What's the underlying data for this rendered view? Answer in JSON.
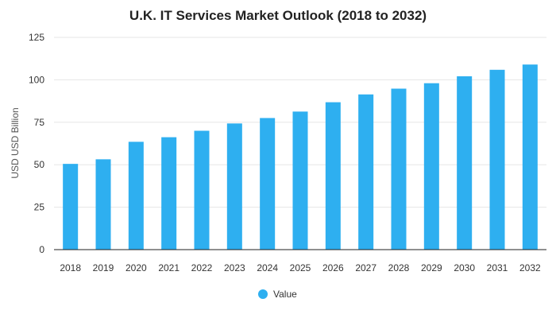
{
  "chart_data": {
    "type": "bar",
    "title": "U.K. IT Services Market Outlook (2018 to 2032)",
    "xlabel": "",
    "ylabel": "USD USD Billion",
    "categories": [
      "2018",
      "2019",
      "2020",
      "2021",
      "2022",
      "2023",
      "2024",
      "2025",
      "2026",
      "2027",
      "2028",
      "2029",
      "2030",
      "2031",
      "2032"
    ],
    "series": [
      {
        "name": "Value",
        "values": [
          50.5,
          53.2,
          63.5,
          66.2,
          70.0,
          74.3,
          77.5,
          81.3,
          86.8,
          91.4,
          94.8,
          98.0,
          102.1,
          105.9,
          109.0
        ]
      }
    ],
    "ylim": [
      0,
      125
    ],
    "yticks": [
      0,
      25,
      50,
      75,
      100,
      125
    ],
    "grid": true,
    "legend_position": "bottom-center",
    "colors": {
      "bar": "#2eaff0",
      "grid": "#e6e6e6",
      "axis": "#222222"
    }
  }
}
